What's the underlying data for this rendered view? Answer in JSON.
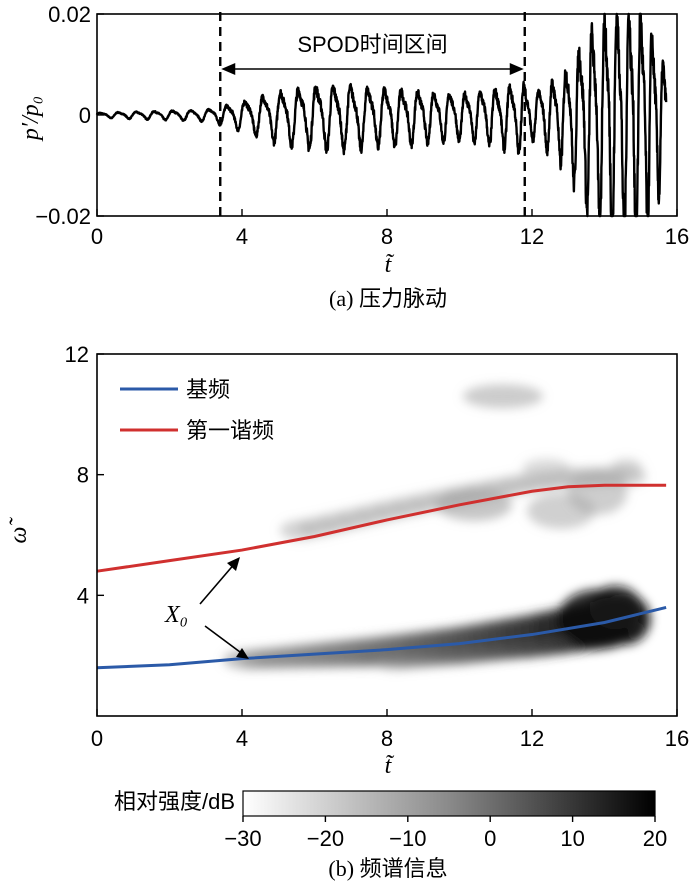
{
  "chart_data": [
    {
      "type": "line",
      "caption": "(a) 压力脉动",
      "xlabel": "t̃",
      "ylabel": "p′/p₀",
      "xlim": [
        0,
        16
      ],
      "ylim": [
        -0.02,
        0.02
      ],
      "xticks": [
        "0",
        "4",
        "8",
        "12",
        "16"
      ],
      "yticks": [
        "0.02",
        "0",
        "−0.02"
      ],
      "annotation": {
        "text": "SPOD时间区间",
        "interval": [
          3.4,
          11.8
        ]
      },
      "series": [
        {
          "envelope": [
            [
              0.0,
              0.0004
            ],
            [
              1.0,
              0.0006
            ],
            [
              2.0,
              0.0008
            ],
            [
              3.0,
              0.001
            ],
            [
              3.4,
              0.0015
            ],
            [
              4.0,
              0.0025
            ],
            [
              5.0,
              0.0045
            ],
            [
              6.0,
              0.0055
            ],
            [
              7.0,
              0.0055
            ],
            [
              8.0,
              0.005
            ],
            [
              9.0,
              0.0045
            ],
            [
              10.0,
              0.004
            ],
            [
              11.0,
              0.005
            ],
            [
              11.8,
              0.006
            ],
            [
              12.0,
              0.004
            ],
            [
              12.5,
              0.006
            ],
            [
              13.0,
              0.009
            ],
            [
              13.5,
              0.015
            ],
            [
              14.0,
              0.019
            ],
            [
              14.5,
              0.02
            ],
            [
              15.0,
              0.02
            ],
            [
              15.5,
              0.013
            ],
            [
              15.7,
              0.008
            ]
          ],
          "frequency": [
            [
              0.0,
              2.0
            ],
            [
              4.0,
              2.0
            ],
            [
              8.0,
              2.15
            ],
            [
              12.0,
              2.55
            ],
            [
              14.0,
              2.9
            ],
            [
              15.7,
              3.3
            ]
          ]
        }
      ]
    },
    {
      "type": "heatmap",
      "caption": "(b) 频谱信息",
      "xlabel": "t̃",
      "ylabel": "ω̃",
      "xlim": [
        0,
        16
      ],
      "ylim": [
        0,
        12
      ],
      "xticks": [
        "0",
        "4",
        "8",
        "12",
        "16"
      ],
      "yticks": [
        "12",
        "8",
        "4"
      ],
      "colorbar": {
        "label": "相对强度/dB",
        "range": [
          -30,
          20
        ],
        "ticks": [
          "−30",
          "−20",
          "−10",
          "0",
          "10",
          "20"
        ]
      },
      "annotation": {
        "text": "X₀"
      },
      "series": [
        {
          "name": "基频",
          "color": "#2b5aa8",
          "x": [
            0,
            2,
            4,
            6,
            8,
            10,
            12,
            14,
            15.7
          ],
          "y": [
            1.6,
            1.7,
            1.9,
            2.05,
            2.2,
            2.4,
            2.7,
            3.1,
            3.6
          ]
        },
        {
          "name": "第一谐频",
          "color": "#d0302f",
          "x": [
            0,
            2,
            4,
            6,
            8,
            10,
            12,
            13,
            14,
            15,
            15.7
          ],
          "y": [
            4.8,
            5.15,
            5.5,
            5.95,
            6.5,
            7.0,
            7.45,
            7.6,
            7.65,
            7.65,
            7.65
          ]
        }
      ]
    }
  ]
}
